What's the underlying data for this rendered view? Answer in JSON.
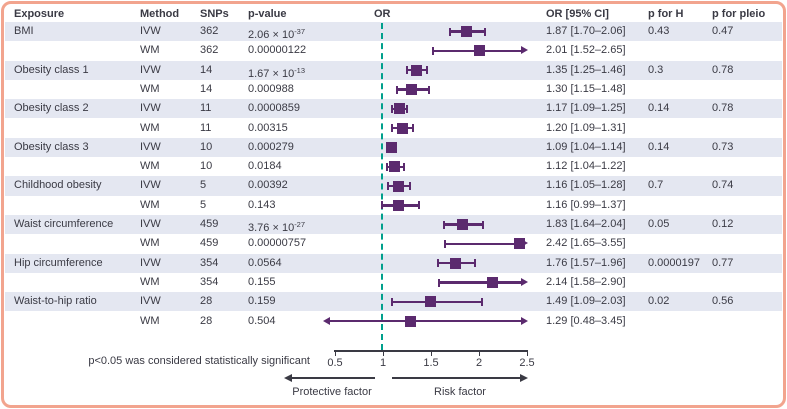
{
  "figure": {
    "columns": {
      "exposure": "Exposure",
      "method": "Method",
      "snps": "SNPs",
      "p_value": "p-value",
      "or_plot": "OR",
      "or_ci": "OR [95% CI]",
      "p_for_h": "p for H",
      "p_for_pleio": "p for pleio"
    },
    "footnote": "p<0.05 was considered statistically significant",
    "direction_labels": {
      "protective": "Protective factor",
      "risk": "Risk factor"
    },
    "colors": {
      "marker_purple": "#5b2a6e",
      "reference_teal": "#00a08c",
      "row_stripe": "#e4e7f1",
      "frame_salmon": "#f2a48e",
      "text": "#3a3a44"
    }
  },
  "chart_data": {
    "type": "forest",
    "axis": {
      "min": 0.5,
      "max": 2.5,
      "ticks": [
        0.5,
        1,
        1.5,
        2,
        2.5
      ],
      "tick_labels": [
        "0.5",
        "1",
        "1.5",
        "2",
        "2.5"
      ],
      "reference_line": 1
    },
    "rows": [
      {
        "exposure": "BMI",
        "method": "IVW",
        "snps": "362",
        "p": "2.06 × 10",
        "pexp": "-37",
        "or": 1.87,
        "lo": 1.7,
        "hi": 2.06,
        "ci": "1.87 [1.70–2.06]",
        "ph": "0.43",
        "ppleio": "0.47"
      },
      {
        "exposure": "",
        "method": "WM",
        "snps": "362",
        "p": "0.00000122",
        "pexp": "",
        "or": 2.01,
        "lo": 1.52,
        "hi": 2.65,
        "ci": "2.01 [1.52–2.65]",
        "ph": "",
        "ppleio": ""
      },
      {
        "exposure": "Obesity class 1",
        "method": "IVW",
        "snps": "14",
        "p": "1.67 × 10",
        "pexp": "-13",
        "or": 1.35,
        "lo": 1.25,
        "hi": 1.46,
        "ci": "1.35 [1.25–1.46]",
        "ph": "0.3",
        "ppleio": "0.78"
      },
      {
        "exposure": "",
        "method": "WM",
        "snps": "14",
        "p": "0.000988",
        "pexp": "",
        "or": 1.3,
        "lo": 1.15,
        "hi": 1.48,
        "ci": "1.30 [1.15–1.48]",
        "ph": "",
        "ppleio": ""
      },
      {
        "exposure": "Obesity class 2",
        "method": "IVW",
        "snps": "11",
        "p": "0.0000859",
        "pexp": "",
        "or": 1.17,
        "lo": 1.09,
        "hi": 1.25,
        "ci": "1.17 [1.09–1.25]",
        "ph": "0.14",
        "ppleio": "0.78"
      },
      {
        "exposure": "",
        "method": "WM",
        "snps": "11",
        "p": "0.00315",
        "pexp": "",
        "or": 1.2,
        "lo": 1.09,
        "hi": 1.31,
        "ci": "1.20 [1.09–1.31]",
        "ph": "",
        "ppleio": ""
      },
      {
        "exposure": "Obesity class 3",
        "method": "IVW",
        "snps": "10",
        "p": "0.000279",
        "pexp": "",
        "or": 1.09,
        "lo": 1.04,
        "hi": 1.14,
        "ci": "1.09 [1.04–1.14]",
        "ph": "0.14",
        "ppleio": "0.73"
      },
      {
        "exposure": "",
        "method": "WM",
        "snps": "10",
        "p": "0.0184",
        "pexp": "",
        "or": 1.12,
        "lo": 1.04,
        "hi": 1.22,
        "ci": "1.12 [1.04–1.22]",
        "ph": "",
        "ppleio": ""
      },
      {
        "exposure": "Childhood obesity",
        "method": "IVW",
        "snps": "5",
        "p": "0.00392",
        "pexp": "",
        "or": 1.16,
        "lo": 1.05,
        "hi": 1.28,
        "ci": "1.16 [1.05–1.28]",
        "ph": "0.7",
        "ppleio": "0.74"
      },
      {
        "exposure": "",
        "method": "WM",
        "snps": "5",
        "p": "0.143",
        "pexp": "",
        "or": 1.16,
        "lo": 0.99,
        "hi": 1.37,
        "ci": "1.16 [0.99–1.37]",
        "ph": "",
        "ppleio": ""
      },
      {
        "exposure": "Waist circumference",
        "method": "IVW",
        "snps": "459",
        "p": "3.76 × 10",
        "pexp": "-27",
        "or": 1.83,
        "lo": 1.64,
        "hi": 2.04,
        "ci": "1.83 [1.64–2.04]",
        "ph": "0.05",
        "ppleio": "0.12"
      },
      {
        "exposure": "",
        "method": "WM",
        "snps": "459",
        "p": "0.00000757",
        "pexp": "",
        "or": 2.42,
        "lo": 1.65,
        "hi": 3.55,
        "ci": "2.42 [1.65–3.55]",
        "ph": "",
        "ppleio": ""
      },
      {
        "exposure": "Hip circumference",
        "method": "IVW",
        "snps": "354",
        "p": "0.0564",
        "pexp": "",
        "or": 1.76,
        "lo": 1.57,
        "hi": 1.96,
        "ci": "1.76 [1.57–1.96]",
        "ph": "0.0000197",
        "ppleio": "0.77"
      },
      {
        "exposure": "",
        "method": "WM",
        "snps": "354",
        "p": "0.155",
        "pexp": "",
        "or": 2.14,
        "lo": 1.58,
        "hi": 2.9,
        "ci": "2.14 [1.58–2.90]",
        "ph": "",
        "ppleio": ""
      },
      {
        "exposure": "Waist-to-hip ratio",
        "method": "IVW",
        "snps": "28",
        "p": "0.159",
        "pexp": "",
        "or": 1.49,
        "lo": 1.09,
        "hi": 2.03,
        "ci": "1.49 [1.09–2.03]",
        "ph": "0.02",
        "ppleio": "0.56"
      },
      {
        "exposure": "",
        "method": "WM",
        "snps": "28",
        "p": "0.504",
        "pexp": "",
        "or": 1.29,
        "lo": 0.48,
        "hi": 3.45,
        "ci": "1.29 [0.48–3.45]",
        "ph": "",
        "ppleio": ""
      }
    ]
  }
}
